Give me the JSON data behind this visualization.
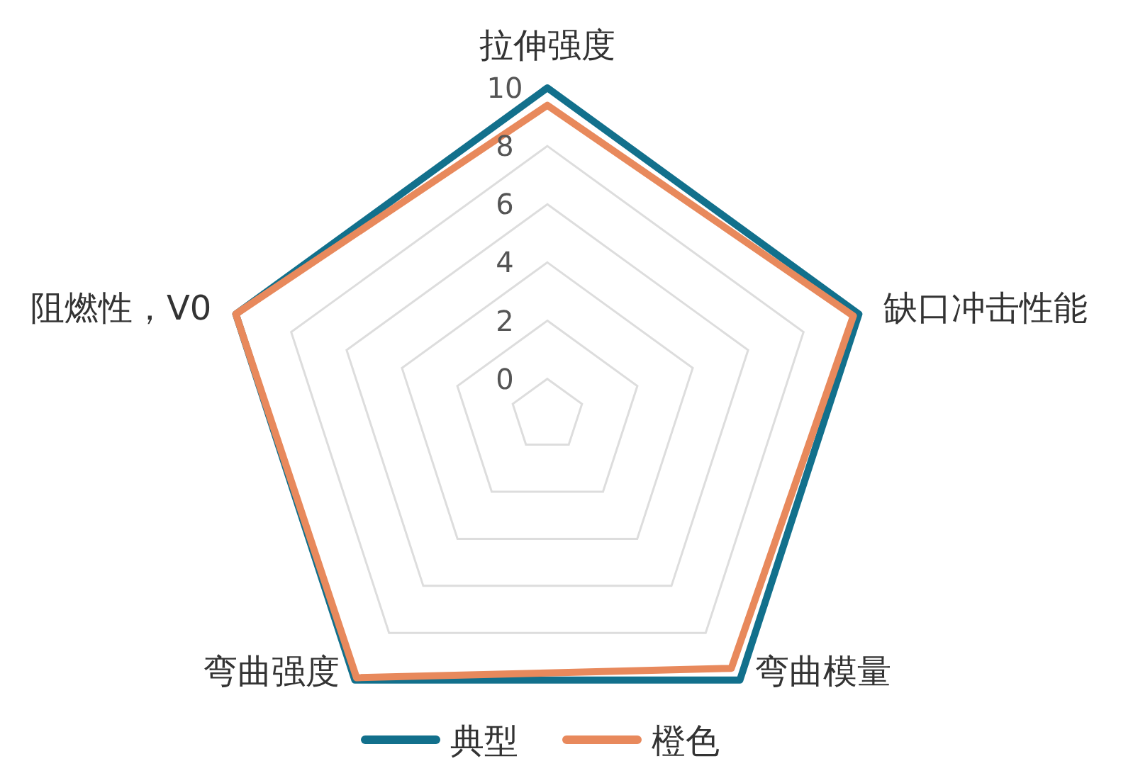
{
  "chart_data": {
    "type": "radar",
    "categories": [
      "拉伸强度",
      "缺口冲击性能",
      "弯曲模量",
      "弯曲强度",
      "阻燃性，V0"
    ],
    "ylim": [
      -1.25,
      10
    ],
    "yticks": [
      0,
      2,
      4,
      6,
      8,
      10
    ],
    "grid": true,
    "legend": "bottom",
    "series": [
      {
        "name": "典型",
        "color": "#12708c",
        "values": [
          10,
          10,
          10,
          10,
          10
        ]
      },
      {
        "name": "橙色",
        "color": "#e8895c",
        "values": [
          9.4,
          9.8,
          9.5,
          9.9,
          10
        ]
      }
    ]
  }
}
